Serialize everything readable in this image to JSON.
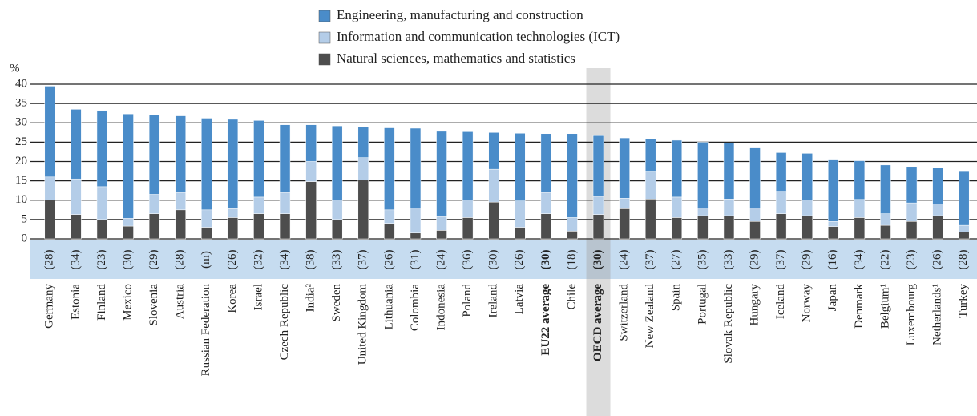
{
  "chart_data": {
    "type": "stacked_bar",
    "y_label": "%",
    "categories": [
      "Germany",
      "Estonia",
      "Finland",
      "Mexico",
      "Slovenia",
      "Austria",
      "Russian Federation",
      "Korea",
      "Israel",
      "Czech Republic",
      "India²",
      "Sweden",
      "United Kingdom",
      "Lithuania",
      "Colombia",
      "Indonesia",
      "Poland",
      "Ireland",
      "Latvia",
      "EU22 average",
      "Chile",
      "OECD average",
      "Switzerland",
      "New Zealand",
      "Spain",
      "Portugal",
      "Slovak Republic",
      "Hungary",
      "Iceland",
      "Norway",
      "Japan",
      "Denmark",
      "Belgium¹",
      "Luxembourg",
      "Netherlands¹",
      "Turkey"
    ],
    "annotations": [
      "(28)",
      "(34)",
      "(23)",
      "(30)",
      "(29)",
      "(28)",
      "(m)",
      "(26)",
      "(32)",
      "(34)",
      "(38)",
      "(33)",
      "(37)",
      "(26)",
      "(31)",
      "(24)",
      "(36)",
      "(30)",
      "(26)",
      "(30)",
      "(18)",
      "(30)",
      "(24)",
      "(37)",
      "(27)",
      "(35)",
      "(33)",
      "(29)",
      "(37)",
      "(29)",
      "(16)",
      "(34)",
      "(22)",
      "(23)",
      "(26)",
      "(28)"
    ],
    "series": [
      {
        "name": "Engineering, manufacturing and construction",
        "color": "#4a8cc9",
        "values": [
          23.5,
          18,
          19.7,
          27,
          20.5,
          19.8,
          23.7,
          23.1,
          19.8,
          17.5,
          9.5,
          19.2,
          8,
          21.2,
          20.6,
          22,
          17.7,
          9.5,
          17.5,
          15.2,
          21.7,
          15.7,
          15.6,
          8.3,
          14.7,
          17,
          14.5,
          15.5,
          10,
          12.1,
          16.1,
          10,
          12.6,
          9.4,
          9.3,
          14.1
        ]
      },
      {
        "name": "Information and communication technologies (ICT)",
        "color": "#b4cde8",
        "values": [
          6,
          9.2,
          8.5,
          2,
          5,
          4.5,
          4.5,
          2.3,
          4.3,
          5.5,
          5.2,
          5,
          5.8,
          3.5,
          6.5,
          3.6,
          4.5,
          8.5,
          6.8,
          5.5,
          3.5,
          4.7,
          2.7,
          7.2,
          5.3,
          2,
          4.3,
          3.5,
          5.8,
          4,
          1.3,
          4.7,
          3,
          4.8,
          3,
          1.7
        ]
      },
      {
        "name": "Natural sciences, mathematics and statistics",
        "color": "#4d4d4d",
        "values": [
          10,
          6.3,
          5,
          3.3,
          6.5,
          7.5,
          3,
          5.5,
          6.5,
          6.5,
          14.8,
          5,
          15.2,
          4,
          1.5,
          2.2,
          5.5,
          9.5,
          3,
          6.5,
          2,
          6.3,
          7.8,
          10.3,
          5.5,
          6,
          6,
          4.5,
          6.5,
          6,
          3.2,
          5.5,
          3.5,
          4.5,
          6,
          1.8
        ]
      }
    ],
    "ylim": [
      0,
      40
    ],
    "yticks": [
      0,
      5,
      10,
      15,
      20,
      25,
      30,
      35,
      40
    ],
    "grid": true,
    "bold": [
      19,
      21
    ],
    "highlight": 21
  }
}
